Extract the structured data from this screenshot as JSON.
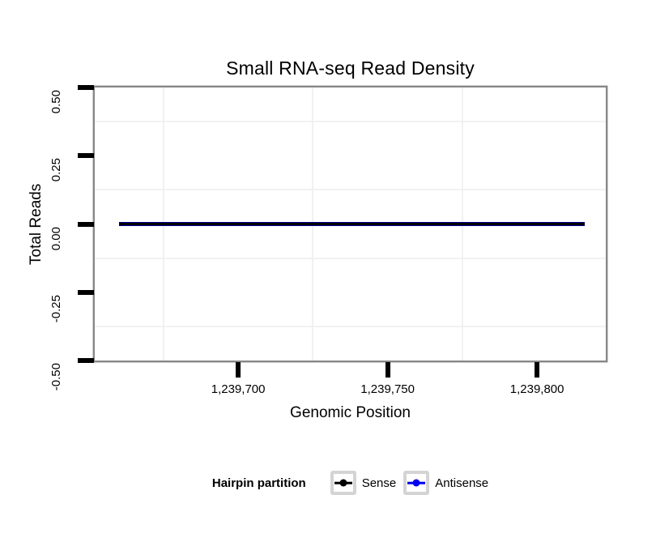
{
  "chart_data": {
    "type": "line",
    "title": "Small RNA-seq Read Density",
    "xlabel": "Genomic Position",
    "ylabel": "Total Reads",
    "xlim": [
      1239652,
      1239823
    ],
    "ylim": [
      -0.5,
      0.5
    ],
    "x_ticks": [
      {
        "value": 1239700,
        "label": "1,239,700"
      },
      {
        "value": 1239750,
        "label": "1,239,750"
      },
      {
        "value": 1239800,
        "label": "1,239,800"
      }
    ],
    "y_ticks": [
      {
        "value": 0.5,
        "label": "0.50"
      },
      {
        "value": 0.25,
        "label": "0.25"
      },
      {
        "value": 0.0,
        "label": "0.00"
      },
      {
        "value": -0.25,
        "label": "-0.25"
      },
      {
        "value": -0.5,
        "label": "-0.50"
      }
    ],
    "x_minor_gridlines": [
      1239675,
      1239725,
      1239775,
      1239825
    ],
    "y_minor_gridlines": [
      0.375,
      0.125,
      -0.125,
      -0.375
    ],
    "grid": "minor-only",
    "legend_position": "bottom",
    "series": [
      {
        "name": "Sense",
        "color": "#000000",
        "x_start": 1239660,
        "x_end": 1239816,
        "y": 0
      },
      {
        "name": "Antisense",
        "color": "#0000EE",
        "x_start": 1239660,
        "x_end": 1239816,
        "y": 0
      }
    ]
  },
  "legend": {
    "title": "Hairpin partition",
    "items": [
      {
        "label": "Sense",
        "color": "#000000"
      },
      {
        "label": "Antisense",
        "color": "#0000EE"
      }
    ]
  },
  "colors": {
    "background": "#ffffff",
    "panel_border": "#878787",
    "axis_tick": "#000000",
    "minor_gridline": "#f1f1f1",
    "legend_key_border": "#d4d4d4",
    "text": "#000000"
  }
}
